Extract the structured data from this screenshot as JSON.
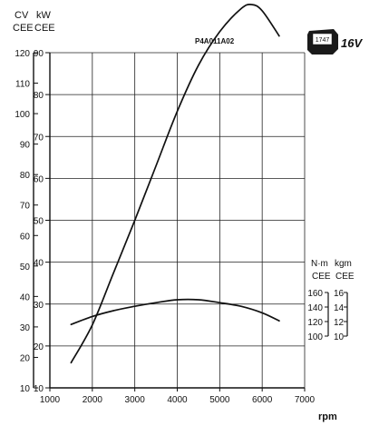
{
  "chart_data": {
    "type": "line",
    "code": "P4A011A02",
    "badge": {
      "number": "1747",
      "text": "16V"
    },
    "xlabel": "rpm",
    "xlim": [
      1000,
      7000
    ],
    "x_ticks": [
      1000,
      2000,
      3000,
      4000,
      5000,
      6000,
      7000
    ],
    "power_axes": {
      "cv": {
        "unit": "CV",
        "norm": "CEE",
        "range": [
          10,
          120
        ],
        "ticks": [
          10,
          20,
          30,
          40,
          50,
          60,
          70,
          80,
          90,
          100,
          110,
          120
        ]
      },
      "kw": {
        "unit": "kW",
        "norm": "CEE",
        "range": [
          10,
          90
        ],
        "ticks": [
          10,
          20,
          30,
          40,
          50,
          60,
          70,
          80,
          90
        ]
      }
    },
    "torque_axes": {
      "nm": {
        "unit": "N·m",
        "norm": "CEE",
        "range": [
          100,
          160
        ],
        "ticks": [
          100,
          120,
          140,
          160
        ]
      },
      "kgm": {
        "unit": "kgm",
        "norm": "CEE",
        "range": [
          10,
          16
        ],
        "ticks": [
          10,
          12,
          14,
          16
        ]
      }
    },
    "series": [
      {
        "axis": "kW",
        "x": [
          1500,
          2000,
          2500,
          3000,
          3500,
          4000,
          4500,
          5000,
          5500,
          5750,
          6000,
          6400
        ],
        "values": [
          16,
          25,
          37.5,
          50,
          63,
          76,
          87,
          95,
          100.5,
          101.5,
          100,
          94
        ]
      },
      {
        "axis": "N·m",
        "x": [
          1500,
          2000,
          2500,
          3000,
          3500,
          4000,
          4500,
          5000,
          5500,
          6000,
          6400
        ],
        "values": [
          116,
          127,
          135,
          141,
          146,
          150,
          150,
          146,
          141,
          132,
          121
        ]
      }
    ]
  }
}
